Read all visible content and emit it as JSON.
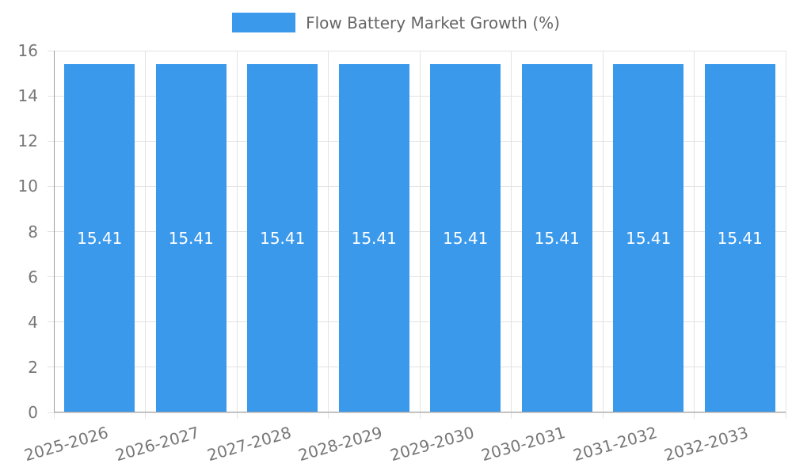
{
  "chart_data": {
    "type": "bar",
    "title": "Flow Battery Market Growth (%)",
    "categories": [
      "2025-2026",
      "2026-2027",
      "2027-2028",
      "2028-2029",
      "2029-2030",
      "2030-2031",
      "2031-2032",
      "2032-2033"
    ],
    "values": [
      15.41,
      15.41,
      15.41,
      15.41,
      15.41,
      15.41,
      15.41,
      15.41
    ],
    "value_labels": [
      "15.41",
      "15.41",
      "15.41",
      "15.41",
      "15.41",
      "15.41",
      "15.41",
      "15.41"
    ],
    "xlabel": "",
    "ylabel": "",
    "ylim": [
      0,
      16
    ],
    "yticks": [
      0,
      2,
      4,
      6,
      8,
      10,
      12,
      14,
      16
    ],
    "grid": true,
    "legend_position": "top",
    "x_label_rotation_deg": -16
  },
  "legend": {
    "label": "Flow Battery Market Growth (%)"
  },
  "colors": {
    "bar": "#3B99EC",
    "grid": "#E3E3E3",
    "axis": "#9E9E9E",
    "tick_text": "#777777",
    "legend_text": "#666666",
    "bar_label_text": "#FFFFFF",
    "background": "#FFFFFF"
  }
}
